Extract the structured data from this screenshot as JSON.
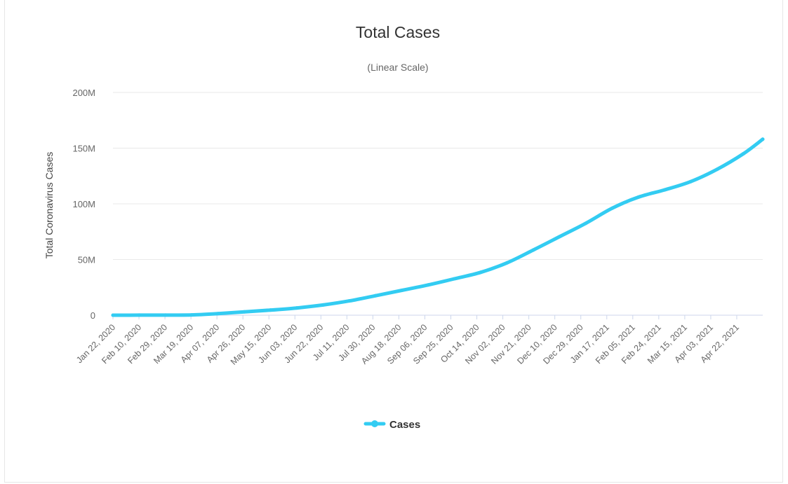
{
  "chart_data": {
    "type": "line",
    "title": "Total Cases",
    "subtitle": "(Linear Scale)",
    "ylabel": "Total Coronavirus Cases",
    "xlabel": "",
    "ylim": [
      0,
      200000000
    ],
    "y_ticks": [
      {
        "value": 0,
        "label": "0"
      },
      {
        "value": 50000000,
        "label": "50M"
      },
      {
        "value": 100000000,
        "label": "100M"
      },
      {
        "value": 150000000,
        "label": "150M"
      },
      {
        "value": 200000000,
        "label": "200M"
      }
    ],
    "x_start": "2020-01-22",
    "x_end": "2021-05-06",
    "x_tick_labels": [
      "Jan 22, 2020",
      "Feb 10, 2020",
      "Feb 29, 2020",
      "Mar 19, 2020",
      "Apr 07, 2020",
      "Apr 26, 2020",
      "May 15, 2020",
      "Jun 03, 2020",
      "Jun 22, 2020",
      "Jul 11, 2020",
      "Jul 30, 2020",
      "Aug 18, 2020",
      "Sep 06, 2020",
      "Sep 25, 2020",
      "Oct 14, 2020",
      "Nov 02, 2020",
      "Nov 21, 2020",
      "Dec 10, 2020",
      "Dec 29, 2020",
      "Jan 17, 2021",
      "Feb 05, 2021",
      "Feb 24, 2021",
      "Mar 15, 2021",
      "Apr 03, 2021",
      "Apr 22, 2021"
    ],
    "grid": true,
    "legend_position": "bottom-center",
    "series": [
      {
        "name": "Cases",
        "color": "#33ccf2",
        "points": [
          [
            "2020-01-22",
            0
          ],
          [
            "2020-02-10",
            40000
          ],
          [
            "2020-02-29",
            90000
          ],
          [
            "2020-03-19",
            250000
          ],
          [
            "2020-04-07",
            1400000
          ],
          [
            "2020-04-26",
            3000000
          ],
          [
            "2020-05-15",
            4600000
          ],
          [
            "2020-06-03",
            6500000
          ],
          [
            "2020-06-22",
            9200000
          ],
          [
            "2020-07-11",
            12800000
          ],
          [
            "2020-07-30",
            17500000
          ],
          [
            "2020-08-18",
            22300000
          ],
          [
            "2020-09-06",
            27200000
          ],
          [
            "2020-09-25",
            32700000
          ],
          [
            "2020-10-14",
            38500000
          ],
          [
            "2020-11-02",
            47000000
          ],
          [
            "2020-11-21",
            58500000
          ],
          [
            "2020-12-10",
            70500000
          ],
          [
            "2020-12-29",
            82500000
          ],
          [
            "2021-01-17",
            96000000
          ],
          [
            "2021-02-05",
            106000000
          ],
          [
            "2021-02-24",
            112500000
          ],
          [
            "2021-03-15",
            120000000
          ],
          [
            "2021-04-03",
            131000000
          ],
          [
            "2021-04-22",
            145000000
          ],
          [
            "2021-05-06",
            158000000
          ]
        ]
      }
    ]
  }
}
